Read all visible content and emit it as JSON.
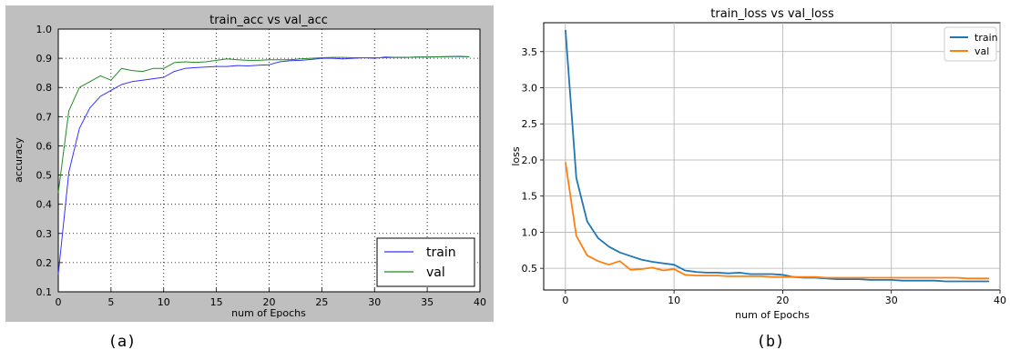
{
  "chart_data": [
    {
      "type": "line",
      "panel_label": "(a)",
      "title": "train_acc vs val_acc",
      "xlabel": "num of Epochs",
      "ylabel": "accuracy",
      "xlim": [
        0,
        40
      ],
      "ylim": [
        0.1,
        1.0
      ],
      "xticks": [
        "0",
        "5",
        "10",
        "15",
        "20",
        "25",
        "30",
        "35",
        "40"
      ],
      "yticks": [
        "0.1",
        "0.2",
        "0.3",
        "0.4",
        "0.5",
        "0.6",
        "0.7",
        "0.8",
        "0.9",
        "1.0"
      ],
      "grid": true,
      "legend_position": "bottom-right",
      "background": "#bfbfbf",
      "series": [
        {
          "name": "train",
          "color": "#3333ff",
          "x": [
            0,
            1,
            2,
            3,
            4,
            5,
            6,
            7,
            8,
            9,
            10,
            11,
            12,
            13,
            14,
            15,
            16,
            17,
            18,
            19,
            20,
            21,
            22,
            23,
            24,
            25,
            26,
            27,
            28,
            29,
            30,
            31,
            32,
            33,
            34,
            35,
            36,
            37,
            38,
            39
          ],
          "values": [
            0.16,
            0.51,
            0.66,
            0.73,
            0.77,
            0.79,
            0.81,
            0.82,
            0.825,
            0.83,
            0.835,
            0.855,
            0.865,
            0.868,
            0.87,
            0.872,
            0.872,
            0.875,
            0.874,
            0.876,
            0.878,
            0.888,
            0.892,
            0.893,
            0.896,
            0.9,
            0.9,
            0.898,
            0.9,
            0.902,
            0.9,
            0.904,
            0.903,
            0.903,
            0.904,
            0.904,
            0.905,
            0.906,
            0.906,
            0.905
          ]
        },
        {
          "name": "val",
          "color": "#228b22",
          "x": [
            0,
            1,
            2,
            3,
            4,
            5,
            6,
            7,
            8,
            9,
            10,
            11,
            12,
            13,
            14,
            15,
            16,
            17,
            18,
            19,
            20,
            21,
            22,
            23,
            24,
            25,
            26,
            27,
            28,
            29,
            30,
            31,
            32,
            33,
            34,
            35,
            36,
            37,
            38,
            39
          ],
          "values": [
            0.44,
            0.72,
            0.8,
            0.82,
            0.84,
            0.825,
            0.865,
            0.858,
            0.855,
            0.865,
            0.865,
            0.885,
            0.888,
            0.886,
            0.888,
            0.893,
            0.898,
            0.895,
            0.893,
            0.893,
            0.895,
            0.895,
            0.895,
            0.898,
            0.9,
            0.902,
            0.903,
            0.903,
            0.902,
            0.902,
            0.902,
            0.902,
            0.903,
            0.903,
            0.904,
            0.904,
            0.905,
            0.906,
            0.907,
            0.905
          ]
        }
      ]
    },
    {
      "type": "line",
      "panel_label": "(b)",
      "title": "train_loss vs val_loss",
      "xlabel": "num of Epochs",
      "ylabel": "loss",
      "xlim": [
        -2,
        40
      ],
      "ylim": [
        0.2,
        3.9
      ],
      "xticks": [
        "0",
        "10",
        "20",
        "30",
        "40"
      ],
      "yticks": [
        "0.5",
        "1.0",
        "1.5",
        "2.0",
        "2.5",
        "3.0",
        "3.5"
      ],
      "grid": true,
      "legend_position": "top-right",
      "background": "#ffffff",
      "series": [
        {
          "name": "train",
          "color": "#1f77b4",
          "x": [
            0,
            1,
            2,
            3,
            4,
            5,
            6,
            7,
            8,
            9,
            10,
            11,
            12,
            13,
            14,
            15,
            16,
            17,
            18,
            19,
            20,
            21,
            22,
            23,
            24,
            25,
            26,
            27,
            28,
            29,
            30,
            31,
            32,
            33,
            34,
            35,
            36,
            37,
            38,
            39
          ],
          "values": [
            3.8,
            1.75,
            1.15,
            0.92,
            0.8,
            0.72,
            0.67,
            0.62,
            0.59,
            0.57,
            0.55,
            0.47,
            0.45,
            0.44,
            0.44,
            0.43,
            0.44,
            0.42,
            0.42,
            0.42,
            0.41,
            0.38,
            0.37,
            0.37,
            0.36,
            0.35,
            0.35,
            0.35,
            0.34,
            0.34,
            0.34,
            0.33,
            0.33,
            0.33,
            0.33,
            0.32,
            0.32,
            0.32,
            0.32,
            0.32
          ]
        },
        {
          "name": "val",
          "color": "#ff7f0e",
          "x": [
            0,
            1,
            2,
            3,
            4,
            5,
            6,
            7,
            8,
            9,
            10,
            11,
            12,
            13,
            14,
            15,
            16,
            17,
            18,
            19,
            20,
            21,
            22,
            23,
            24,
            25,
            26,
            27,
            28,
            29,
            30,
            31,
            32,
            33,
            34,
            35,
            36,
            37,
            38,
            39
          ],
          "values": [
            1.97,
            0.95,
            0.68,
            0.6,
            0.55,
            0.6,
            0.48,
            0.49,
            0.51,
            0.47,
            0.49,
            0.41,
            0.4,
            0.4,
            0.4,
            0.39,
            0.39,
            0.39,
            0.39,
            0.38,
            0.38,
            0.38,
            0.38,
            0.38,
            0.37,
            0.37,
            0.37,
            0.37,
            0.37,
            0.37,
            0.37,
            0.37,
            0.37,
            0.37,
            0.37,
            0.37,
            0.37,
            0.36,
            0.36,
            0.36
          ]
        }
      ]
    }
  ]
}
